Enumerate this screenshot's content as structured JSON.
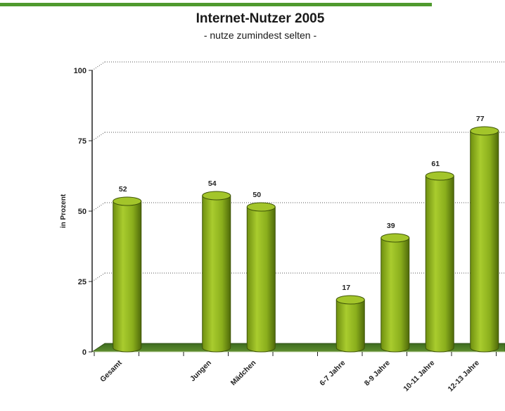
{
  "logo_text": "",
  "chart_data": {
    "type": "bar",
    "title": "Internet-Nutzer 2005",
    "subtitle": "- nutze zumindest selten -",
    "ylabel": "in Prozent",
    "xlabel": "",
    "ylim": [
      0,
      100
    ],
    "yticks": [
      0,
      25,
      50,
      75,
      100
    ],
    "grid": true,
    "categories": [
      "Gesamt",
      "",
      "Jungen",
      "Mädchen",
      "",
      "6-7 Jahre",
      "8-9 Jahre",
      "10-11 Jahre",
      "12-13 Jahre"
    ],
    "values": [
      52,
      null,
      54,
      50,
      null,
      17,
      39,
      61,
      77
    ],
    "bar_color": "#8db320",
    "bar_dark": "#4f6a0a"
  }
}
